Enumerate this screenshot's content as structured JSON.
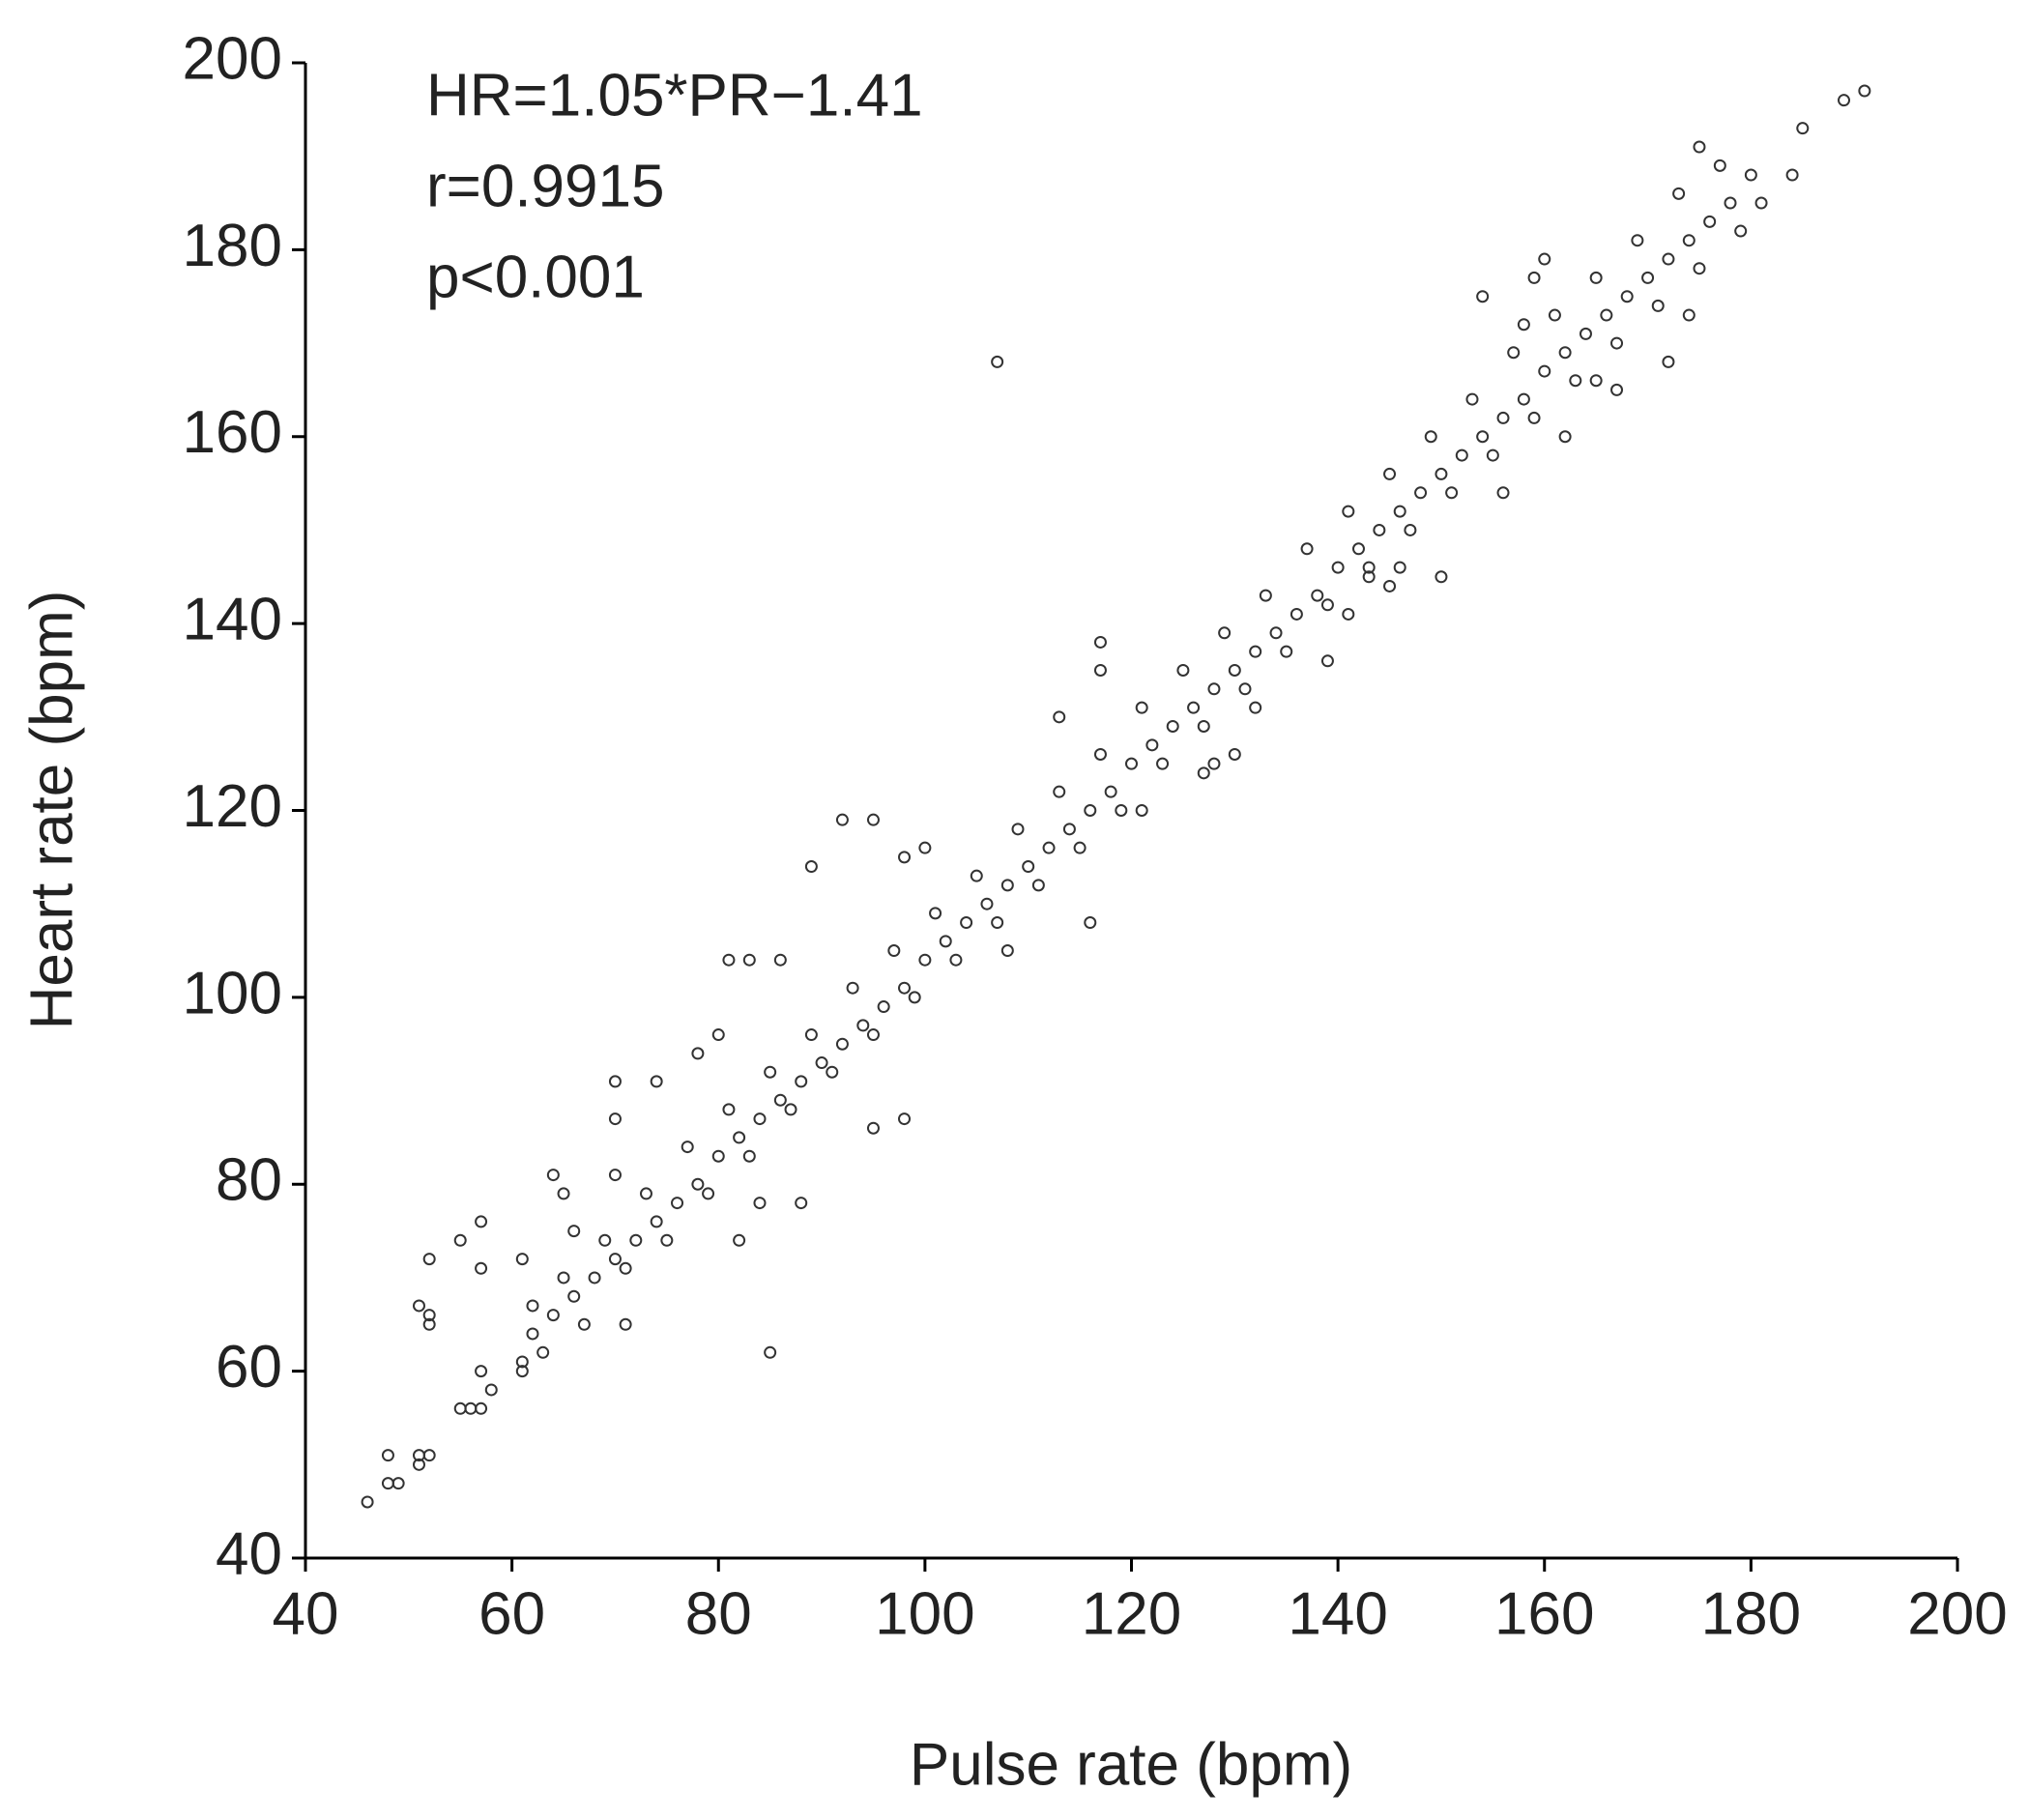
{
  "chart_data": {
    "type": "scatter",
    "xlabel": "Pulse rate (bpm)",
    "ylabel": "Heart rate (bpm)",
    "annotations": [
      "HR=1.05*PR−1.41",
      "r=0.9915",
      "p<0.001"
    ],
    "xlim": [
      40,
      200
    ],
    "ylim": [
      40,
      200
    ],
    "xticks": [
      40,
      60,
      80,
      100,
      120,
      140,
      160,
      180,
      200
    ],
    "yticks": [
      40,
      60,
      80,
      100,
      120,
      140,
      160,
      180,
      200
    ],
    "color": "#333333",
    "x": [
      46,
      48,
      48,
      49,
      51,
      51,
      51,
      52,
      52,
      52,
      52,
      55,
      55,
      56,
      57,
      57,
      57,
      57,
      58,
      61,
      61,
      61,
      62,
      64,
      65,
      66,
      70,
      70,
      70,
      71,
      74,
      78,
      80,
      81,
      82,
      83,
      84,
      85,
      86,
      88,
      89,
      92,
      95,
      95,
      98,
      98,
      100,
      107,
      108,
      113,
      116,
      117,
      117,
      121,
      127,
      128,
      130,
      132,
      139,
      141,
      143,
      145,
      146,
      150,
      154,
      156,
      158,
      159,
      160,
      162,
      165,
      167,
      172,
      175,
      174,
      181,
      184,
      185,
      189,
      191,
      62,
      64,
      66,
      68,
      70,
      72,
      74,
      76,
      78,
      80,
      82,
      84,
      86,
      88,
      90,
      92,
      94,
      96,
      98,
      100,
      102,
      104,
      106,
      108,
      110,
      112,
      114,
      116,
      118,
      120,
      122,
      124,
      126,
      128,
      130,
      132,
      134,
      136,
      138,
      140,
      142,
      144,
      146,
      148,
      150,
      152,
      154,
      156,
      158,
      160,
      162,
      164,
      166,
      168,
      170,
      172,
      174,
      176,
      178,
      180,
      63,
      65,
      67,
      69,
      71,
      73,
      75,
      77,
      79,
      81,
      83,
      85,
      87,
      89,
      91,
      93,
      95,
      97,
      99,
      101,
      103,
      105,
      107,
      109,
      111,
      113,
      115,
      117,
      119,
      121,
      123,
      125,
      127,
      129,
      131,
      133,
      135,
      137,
      139,
      141,
      143,
      145,
      147,
      149,
      151,
      153,
      155,
      157,
      159,
      161,
      163,
      165,
      167,
      169,
      171,
      173,
      175,
      177,
      179
    ],
    "values": [
      46,
      48,
      51,
      48,
      50,
      51,
      67,
      51,
      66,
      65,
      72,
      74,
      56,
      56,
      56,
      60,
      71,
      76,
      58,
      60,
      61,
      72,
      67,
      81,
      79,
      75,
      91,
      87,
      81,
      65,
      91,
      94,
      96,
      104,
      74,
      104,
      78,
      62,
      104,
      78,
      114,
      119,
      119,
      86,
      87,
      115,
      116,
      168,
      105,
      130,
      108,
      138,
      135,
      120,
      124,
      125,
      126,
      131,
      136,
      141,
      145,
      144,
      146,
      145,
      175,
      154,
      172,
      177,
      179,
      160,
      166,
      165,
      168,
      191,
      173,
      185,
      188,
      193,
      196,
      197,
      64,
      66,
      68,
      70,
      72,
      74,
      76,
      78,
      80,
      83,
      85,
      87,
      89,
      91,
      93,
      95,
      97,
      99,
      101,
      104,
      106,
      108,
      110,
      112,
      114,
      116,
      118,
      120,
      122,
      125,
      127,
      129,
      131,
      133,
      135,
      137,
      139,
      141,
      143,
      146,
      148,
      150,
      152,
      154,
      156,
      158,
      160,
      162,
      164,
      167,
      169,
      171,
      173,
      175,
      177,
      179,
      181,
      183,
      185,
      188,
      62,
      70,
      65,
      74,
      71,
      79,
      74,
      84,
      79,
      88,
      83,
      92,
      88,
      96,
      92,
      101,
      96,
      105,
      100,
      109,
      104,
      113,
      108,
      118,
      112,
      122,
      116,
      126,
      120,
      131,
      125,
      135,
      129,
      139,
      133,
      143,
      137,
      148,
      142,
      152,
      146,
      156,
      150,
      160,
      154,
      164,
      158,
      169,
      162,
      173,
      166,
      177,
      170,
      181,
      174,
      186,
      178,
      189,
      182
    ]
  }
}
